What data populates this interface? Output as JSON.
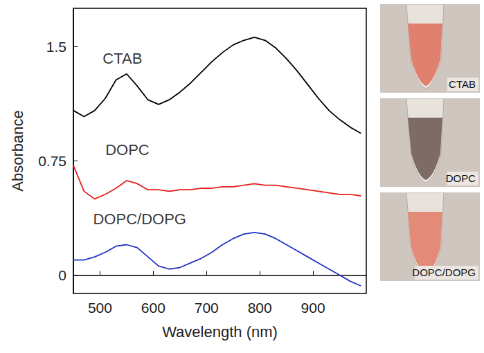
{
  "chart_data": {
    "type": "line",
    "x_label": "Wavelength (nm)",
    "y_label": "Absorbance",
    "xlim": [
      450,
      1000
    ],
    "xticks": [
      500,
      600,
      700,
      800,
      900
    ],
    "ylim": [
      -0.12,
      1.75
    ],
    "yticks": [
      0,
      0.75,
      1.5
    ],
    "grid": false,
    "x": [
      450,
      470,
      490,
      510,
      530,
      550,
      570,
      590,
      610,
      630,
      650,
      670,
      690,
      710,
      730,
      750,
      770,
      790,
      810,
      830,
      850,
      870,
      890,
      910,
      930,
      950,
      970,
      990
    ],
    "series": [
      {
        "name": "CTAB",
        "color": "#000000",
        "label_at": [
          505,
          1.42
        ],
        "values": [
          1.08,
          1.04,
          1.08,
          1.16,
          1.28,
          1.32,
          1.24,
          1.15,
          1.12,
          1.15,
          1.2,
          1.26,
          1.33,
          1.4,
          1.46,
          1.51,
          1.54,
          1.56,
          1.54,
          1.49,
          1.42,
          1.34,
          1.25,
          1.16,
          1.08,
          1.02,
          0.97,
          0.93
        ]
      },
      {
        "name": "DOPC",
        "color": "#e8201c",
        "label_at": [
          510,
          0.82
        ],
        "values": [
          0.72,
          0.55,
          0.5,
          0.53,
          0.57,
          0.62,
          0.6,
          0.56,
          0.56,
          0.55,
          0.56,
          0.56,
          0.57,
          0.57,
          0.58,
          0.58,
          0.59,
          0.6,
          0.59,
          0.59,
          0.58,
          0.57,
          0.56,
          0.55,
          0.54,
          0.53,
          0.53,
          0.52
        ]
      },
      {
        "name": "DOPC/DOPG",
        "color": "#2233c0",
        "label_at": [
          487,
          0.37
        ],
        "values": [
          0.1,
          0.1,
          0.12,
          0.15,
          0.19,
          0.2,
          0.18,
          0.12,
          0.06,
          0.04,
          0.05,
          0.08,
          0.11,
          0.15,
          0.2,
          0.24,
          0.27,
          0.28,
          0.27,
          0.24,
          0.2,
          0.16,
          0.12,
          0.08,
          0.04,
          0.0,
          -0.04,
          -0.07
        ]
      }
    ],
    "images": [
      {
        "label": "CTAB",
        "color": "#e0806e"
      },
      {
        "label": "DOPC",
        "color": "#7d6b66"
      },
      {
        "label": "DOPC/DOPG",
        "color": "#e38a78"
      }
    ]
  }
}
